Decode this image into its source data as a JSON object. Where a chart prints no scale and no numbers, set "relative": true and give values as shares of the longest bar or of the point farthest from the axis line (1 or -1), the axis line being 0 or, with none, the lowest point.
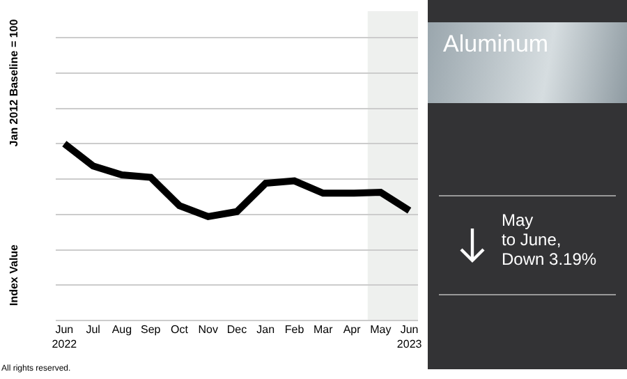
{
  "chart_data": {
    "type": "line",
    "title": "Aluminum",
    "ylabel": "Index Value",
    "categories": [
      "Jun\n2022",
      "Jul",
      "Aug",
      "Sep",
      "Oct",
      "Nov",
      "Dec",
      "Jan",
      "Feb",
      "Mar",
      "Apr",
      "May",
      "Jun\n2023"
    ],
    "series": [
      {
        "color": "#000000",
        "values": [
          1,
          0.874,
          0.824,
          0.81,
          0.65,
          0.588,
          0.616,
          0.776,
          0.79,
          0.72,
          0.72,
          0.725,
          0.622
        ]
      }
    ],
    "relative": true,
    "grid": "y",
    "marker": "none",
    "line_style": "solid",
    "bands": [
      {
        "axis": "x",
        "from": "May",
        "to": "Jun\n2023",
        "color": "#eef0ee"
      }
    ],
    "annotations": [
      "Jan 2012 Baseline = 100",
      "May\nto June,\nDown 3.19%",
      "All rights reserved."
    ]
  }
}
